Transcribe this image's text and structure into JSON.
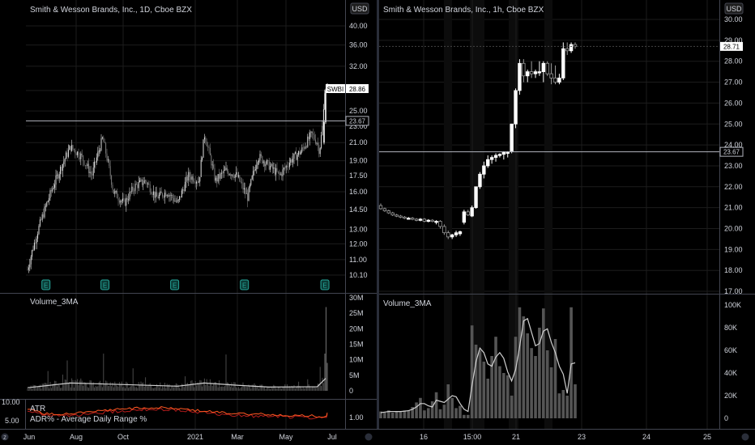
{
  "colors": {
    "background": "#000000",
    "text": "#d1d4dc",
    "grid": "#1c1c1c",
    "divider": "#434651",
    "up": "#ffffff",
    "down": "#5d606b",
    "volume": "#555555",
    "ma": "#cfcfcf",
    "atr": "#ff5722",
    "adr": "#b71c1c",
    "hline": "#b2b5be"
  },
  "left": {
    "title": "Smith & Wesson Brands, Inc., 1D, Cboe BZX",
    "currency": "USD",
    "symbol_tag": "SWBI",
    "last_price_label": "28.86",
    "hline_label": "23.67",
    "earnings_marker": "E",
    "volume_title": "Volume_3MA",
    "atr_title": "ATR",
    "adr_title": "ADR% - Average Daily Range %",
    "atr_right_tick": "1.00",
    "atr_left_ticks": [
      "10.00",
      "5.00"
    ],
    "x_labels": [
      "Jun",
      "Aug",
      "Oct",
      "2021",
      "Mar",
      "May",
      "Jul"
    ]
  },
  "right": {
    "title": "Smith & Wesson Brands, Inc., 1h, Cboe BZX",
    "currency": "USD",
    "last_price_label": "28.71",
    "hline_label": "23.67",
    "volume_title": "Volume_3MA",
    "x_labels": [
      "16",
      "15:00",
      "21",
      "23",
      "24",
      "25"
    ]
  },
  "chart_data": [
    {
      "type": "candlestick",
      "title": "Smith & Wesson Brands, Inc., 1D, Cboe BZX",
      "scale": "log",
      "y_ticks": [
        "40.00",
        "36.00",
        "32.00",
        "28.00",
        "25.00",
        "23.00",
        "21.00",
        "19.00",
        "17.50",
        "16.00",
        "14.50",
        "13.00",
        "12.00",
        "11.00",
        "10.10"
      ],
      "ylim": [
        10.1,
        40
      ],
      "x_tick_labels": [
        "Jun",
        "Aug",
        "Oct",
        "2021",
        "Mar",
        "May",
        "Jul"
      ],
      "key_levels": [
        {
          "label": "23.67",
          "value": 23.67
        },
        {
          "label": "28.86",
          "value": 28.86
        }
      ],
      "close_path": [
        {
          "date": "2020-05-25",
          "close": 10.4
        },
        {
          "date": "2020-06-08",
          "close": 13.0
        },
        {
          "date": "2020-06-22",
          "close": 15.5
        },
        {
          "date": "2020-07-06",
          "close": 18.0
        },
        {
          "date": "2020-07-20",
          "close": 20.5
        },
        {
          "date": "2020-08-03",
          "close": 19.5
        },
        {
          "date": "2020-08-17",
          "close": 17.5
        },
        {
          "date": "2020-08-31",
          "close": 21.5
        },
        {
          "date": "2020-09-14",
          "close": 16.0
        },
        {
          "date": "2020-09-28",
          "close": 15.0
        },
        {
          "date": "2020-10-12",
          "close": 16.5
        },
        {
          "date": "2020-10-26",
          "close": 17.0
        },
        {
          "date": "2020-11-09",
          "close": 15.5
        },
        {
          "date": "2020-11-23",
          "close": 16.0
        },
        {
          "date": "2020-12-07",
          "close": 15.0
        },
        {
          "date": "2020-12-21",
          "close": 17.5
        },
        {
          "date": "2021-01-04",
          "close": 17.0
        },
        {
          "date": "2021-01-11",
          "close": 22.0
        },
        {
          "date": "2021-01-25",
          "close": 17.0
        },
        {
          "date": "2021-02-08",
          "close": 18.0
        },
        {
          "date": "2021-02-22",
          "close": 17.5
        },
        {
          "date": "2021-03-08",
          "close": 15.5
        },
        {
          "date": "2021-03-22",
          "close": 19.5
        },
        {
          "date": "2021-04-05",
          "close": 18.5
        },
        {
          "date": "2021-04-19",
          "close": 17.5
        },
        {
          "date": "2021-05-03",
          "close": 19.0
        },
        {
          "date": "2021-05-17",
          "close": 20.0
        },
        {
          "date": "2021-05-31",
          "close": 22.0
        },
        {
          "date": "2021-06-07",
          "close": 21.0
        },
        {
          "date": "2021-06-10",
          "close": 20.0
        },
        {
          "date": "2021-06-14",
          "close": 23.0
        },
        {
          "date": "2021-06-17",
          "close": 28.0
        },
        {
          "date": "2021-06-18",
          "close": 28.86
        }
      ],
      "earnings_dates": [
        "2020-06-18",
        "2020-09-03",
        "2020-12-03",
        "2021-03-04",
        "2021-06-17"
      ],
      "volume": {
        "title": "Volume_3MA",
        "y_ticks": [
          "30M",
          "25M",
          "20M",
          "15M",
          "10M",
          "5M",
          "0"
        ],
        "ylim": [
          0,
          30000000
        ],
        "ma_path": [
          {
            "date": "2020-05-25",
            "value": 1000000
          },
          {
            "date": "2020-07-20",
            "value": 2500000
          },
          {
            "date": "2020-09-28",
            "value": 2000000
          },
          {
            "date": "2020-12-07",
            "value": 1500000
          },
          {
            "date": "2021-01-11",
            "value": 2500000
          },
          {
            "date": "2021-02-22",
            "value": 1800000
          },
          {
            "date": "2021-04-05",
            "value": 1200000
          },
          {
            "date": "2021-06-07",
            "value": 1300000
          },
          {
            "date": "2021-06-18",
            "value": 4000000
          }
        ],
        "peak": {
          "date": "2021-06-17",
          "value": 27000000
        }
      },
      "indicator": {
        "series": [
          {
            "name": "ATR",
            "scale_ticks": [
              "1.00"
            ]
          },
          {
            "name": "ADR% - Average Daily Range %",
            "scale_ticks": [
              "10.00",
              "5.00"
            ]
          }
        ]
      }
    },
    {
      "type": "candlestick",
      "title": "Smith & Wesson Brands, Inc., 1h, Cboe BZX",
      "y_ticks": [
        "30.00",
        "29.00",
        "28.00",
        "27.00",
        "26.00",
        "25.00",
        "24.00",
        "23.00",
        "22.00",
        "21.00",
        "20.00",
        "19.00",
        "18.00",
        "17.00"
      ],
      "ylim": [
        17,
        30.5
      ],
      "x_tick_labels": [
        "16",
        "15:00",
        "21",
        "23",
        "24",
        "25"
      ],
      "key_levels": [
        {
          "label": "23.67",
          "value": 23.67
        },
        {
          "label": "28.71",
          "value": 28.71
        }
      ],
      "candles": [
        {
          "o": 21.1,
          "h": 21.2,
          "l": 20.9,
          "c": 20.95
        },
        {
          "o": 20.95,
          "h": 21.0,
          "l": 20.8,
          "c": 20.85
        },
        {
          "o": 20.85,
          "h": 20.9,
          "l": 20.7,
          "c": 20.75
        },
        {
          "o": 20.75,
          "h": 20.8,
          "l": 20.6,
          "c": 20.65
        },
        {
          "o": 20.65,
          "h": 20.7,
          "l": 20.55,
          "c": 20.6
        },
        {
          "o": 20.6,
          "h": 20.65,
          "l": 20.5,
          "c": 20.55
        },
        {
          "o": 20.55,
          "h": 20.6,
          "l": 20.45,
          "c": 20.5
        },
        {
          "o": 20.5,
          "h": 20.55,
          "l": 20.45,
          "c": 20.5
        },
        {
          "o": 20.5,
          "h": 20.55,
          "l": 20.4,
          "c": 20.45
        },
        {
          "o": 20.45,
          "h": 20.5,
          "l": 20.35,
          "c": 20.4
        },
        {
          "o": 20.4,
          "h": 20.5,
          "l": 20.35,
          "c": 20.45
        },
        {
          "o": 20.45,
          "h": 20.5,
          "l": 20.3,
          "c": 20.35
        },
        {
          "o": 20.35,
          "h": 20.45,
          "l": 20.3,
          "c": 20.4
        },
        {
          "o": 20.4,
          "h": 20.45,
          "l": 20.3,
          "c": 20.35
        },
        {
          "o": 20.3,
          "h": 20.4,
          "l": 20.2,
          "c": 20.35
        },
        {
          "o": 20.35,
          "h": 20.4,
          "l": 20.0,
          "c": 20.1
        },
        {
          "o": 20.1,
          "h": 20.2,
          "l": 19.7,
          "c": 19.8
        },
        {
          "o": 19.8,
          "h": 19.9,
          "l": 19.5,
          "c": 19.6
        },
        {
          "o": 19.6,
          "h": 19.75,
          "l": 19.5,
          "c": 19.7
        },
        {
          "o": 19.7,
          "h": 19.9,
          "l": 19.6,
          "c": 19.8
        },
        {
          "o": 19.75,
          "h": 19.9,
          "l": 19.65,
          "c": 19.85
        },
        {
          "o": 20.3,
          "h": 20.9,
          "l": 20.2,
          "c": 20.8
        },
        {
          "o": 20.8,
          "h": 20.9,
          "l": 20.6,
          "c": 20.65
        },
        {
          "o": 20.6,
          "h": 21.1,
          "l": 20.55,
          "c": 21.0
        },
        {
          "o": 21.0,
          "h": 22.0,
          "l": 20.95,
          "c": 22.0
        },
        {
          "o": 22.0,
          "h": 22.7,
          "l": 21.9,
          "c": 22.6
        },
        {
          "o": 22.6,
          "h": 23.2,
          "l": 22.4,
          "c": 23.0
        },
        {
          "o": 23.0,
          "h": 23.5,
          "l": 22.9,
          "c": 23.3
        },
        {
          "o": 23.3,
          "h": 23.5,
          "l": 23.1,
          "c": 23.4
        },
        {
          "o": 23.4,
          "h": 23.6,
          "l": 23.2,
          "c": 23.5
        },
        {
          "o": 23.5,
          "h": 23.6,
          "l": 23.4,
          "c": 23.55
        },
        {
          "o": 23.55,
          "h": 23.7,
          "l": 23.3,
          "c": 23.65
        },
        {
          "o": 23.6,
          "h": 23.7,
          "l": 23.4,
          "c": 23.65
        },
        {
          "o": 23.7,
          "h": 25.0,
          "l": 23.6,
          "c": 25.0
        },
        {
          "o": 25.0,
          "h": 26.7,
          "l": 24.8,
          "c": 26.6
        },
        {
          "o": 26.6,
          "h": 28.1,
          "l": 26.4,
          "c": 27.9
        },
        {
          "o": 27.9,
          "h": 28.1,
          "l": 27.0,
          "c": 27.3
        },
        {
          "o": 27.3,
          "h": 27.6,
          "l": 27.0,
          "c": 27.5
        },
        {
          "o": 27.5,
          "h": 28.0,
          "l": 27.2,
          "c": 27.4
        },
        {
          "o": 27.4,
          "h": 27.6,
          "l": 27.2,
          "c": 27.5
        },
        {
          "o": 27.5,
          "h": 28.0,
          "l": 27.3,
          "c": 27.5
        },
        {
          "o": 27.5,
          "h": 28.0,
          "l": 27.0,
          "c": 27.9
        },
        {
          "o": 27.9,
          "h": 28.0,
          "l": 27.3,
          "c": 27.4
        },
        {
          "o": 27.4,
          "h": 27.9,
          "l": 26.9,
          "c": 27.2
        },
        {
          "o": 27.2,
          "h": 27.8,
          "l": 26.9,
          "c": 27.0
        },
        {
          "o": 27.0,
          "h": 27.4,
          "l": 26.9,
          "c": 27.2
        },
        {
          "o": 27.2,
          "h": 28.9,
          "l": 27.1,
          "c": 28.6
        },
        {
          "o": 28.6,
          "h": 28.9,
          "l": 28.3,
          "c": 28.5
        },
        {
          "o": 28.5,
          "h": 28.9,
          "l": 28.4,
          "c": 28.8
        },
        {
          "o": 28.8,
          "h": 28.9,
          "l": 28.6,
          "c": 28.71
        }
      ],
      "volume": {
        "title": "Volume_3MA",
        "y_ticks": [
          "100K",
          "80K",
          "60K",
          "40K",
          "20K",
          "0"
        ],
        "ylim": [
          0,
          110000
        ],
        "values": [
          6000,
          5000,
          7000,
          5000,
          6000,
          6000,
          7000,
          7000,
          10000,
          14000,
          18000,
          7000,
          9000,
          15000,
          23000,
          8000,
          12000,
          30000,
          18000,
          9000,
          11000,
          3000,
          3000,
          82000,
          65000,
          60000,
          50000,
          35000,
          55000,
          72000,
          46000,
          40000,
          38000,
          20000,
          72000,
          98000,
          90000,
          75000,
          62000,
          55000,
          80000,
          97000,
          60000,
          45000,
          70000,
          22000,
          25000,
          20000,
          98000,
          30000
        ],
        "ma": [
          5000,
          5500,
          6000,
          6000,
          6000,
          6000,
          6300,
          6700,
          8000,
          10000,
          13000,
          13000,
          11000,
          10000,
          16000,
          15000,
          14000,
          17000,
          20000,
          19000,
          13000,
          8000,
          6000,
          29000,
          50000,
          62000,
          58000,
          48000,
          46000,
          54000,
          58000,
          53000,
          41000,
          33000,
          43000,
          63000,
          86000,
          88000,
          76000,
          64000,
          66000,
          77000,
          79000,
          67000,
          58000,
          46000,
          39000,
          22000,
          48000,
          49000
        ]
      }
    }
  ]
}
